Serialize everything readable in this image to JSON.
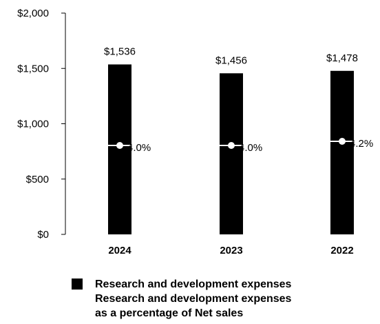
{
  "chart_data": {
    "type": "bar",
    "categories": [
      "2024",
      "2023",
      "2022"
    ],
    "series": [
      {
        "name": "Research and development expenses",
        "values": [
          1536,
          1456,
          1478
        ],
        "labels": [
          "$1,536",
          "$1,456",
          "$1,478"
        ]
      },
      {
        "name": "Research and development expenses as a percentage of Net sales",
        "values": [
          4.0,
          4.0,
          4.2
        ],
        "labels": [
          "4.0%",
          "4.0%",
          "4.2%"
        ]
      }
    ],
    "y_ticks": [
      "$0",
      "$500",
      "$1,000",
      "$1,500",
      "$2,000"
    ],
    "ylim": [
      0,
      2000
    ],
    "bar_color": "#000000",
    "marker_color": "#ffffff",
    "title": "",
    "xlabel": "",
    "ylabel": ""
  },
  "legend": {
    "bar_label": "Research and development expenses",
    "line_label_1": "Research and development expenses",
    "line_label_2": "as a percentage of Net sales"
  }
}
